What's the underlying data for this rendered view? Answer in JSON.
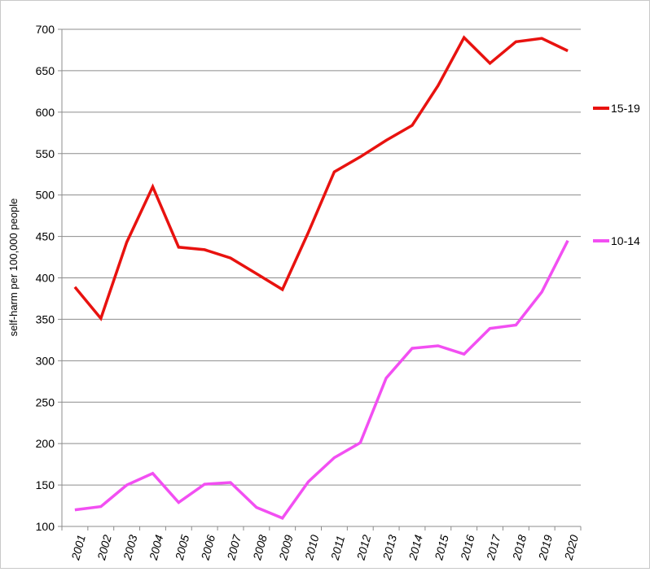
{
  "chart_data": {
    "type": "line",
    "title": "",
    "xlabel": "",
    "ylabel": "self-harm per 100,000 people",
    "ylim": [
      100,
      700
    ],
    "yticks": [
      "100",
      "150",
      "200",
      "250",
      "300",
      "350",
      "400",
      "450",
      "500",
      "550",
      "600",
      "650",
      "700"
    ],
    "categories": [
      "2001",
      "2002",
      "2003",
      "2004",
      "2005",
      "2006",
      "2007",
      "2008",
      "2009",
      "2010",
      "2011",
      "2012",
      "2013",
      "2014",
      "2015",
      "2016",
      "2017",
      "2018",
      "2019",
      "2020"
    ],
    "grid": "horizontal",
    "legend_position": "right",
    "series": [
      {
        "name": "15-19",
        "color": "#e8120f",
        "values": [
          389,
          351,
          443,
          510,
          437,
          434,
          424,
          405,
          386,
          455,
          528,
          546,
          566,
          584,
          632,
          690,
          659,
          685,
          689,
          674
        ]
      },
      {
        "name": "10-14",
        "color": "#f24ff2",
        "values": [
          120,
          124,
          150,
          164,
          129,
          151,
          153,
          123,
          110,
          154,
          183,
          201,
          279,
          315,
          318,
          308,
          339,
          343,
          383,
          445
        ]
      }
    ]
  }
}
